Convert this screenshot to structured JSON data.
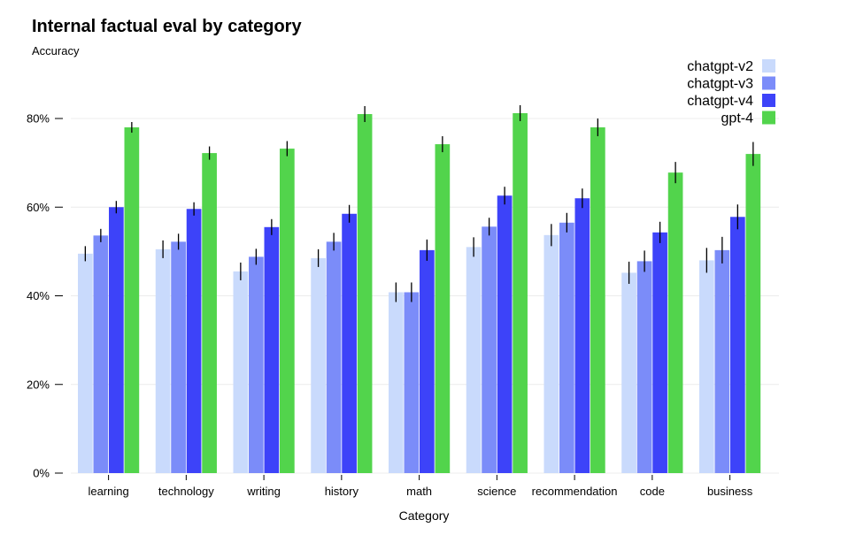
{
  "chart_data": {
    "type": "bar",
    "title": "Internal factual eval by category",
    "ylabel": "Accuracy",
    "xlabel": "Category",
    "ylim": [
      0,
      0.8
    ],
    "yticks": [
      0,
      0.2,
      0.4,
      0.6,
      0.8
    ],
    "ytick_labels": [
      "0%",
      "20%",
      "40%",
      "60%",
      "80%"
    ],
    "grid": true,
    "legend_position": "top-right",
    "categories": [
      "learning",
      "technology",
      "writing",
      "history",
      "math",
      "science",
      "recommendation",
      "code",
      "business"
    ],
    "series": [
      {
        "name": "chatgpt-v2",
        "color": "#c9dafc",
        "values": [
          0.495,
          0.505,
          0.455,
          0.485,
          0.408,
          0.51,
          0.537,
          0.452,
          0.48
        ],
        "errors": [
          0.017,
          0.02,
          0.02,
          0.02,
          0.022,
          0.022,
          0.025,
          0.025,
          0.028
        ]
      },
      {
        "name": "chatgpt-v3",
        "color": "#7b8cf9",
        "values": [
          0.536,
          0.522,
          0.488,
          0.522,
          0.408,
          0.556,
          0.565,
          0.478,
          0.503
        ],
        "errors": [
          0.015,
          0.018,
          0.018,
          0.02,
          0.022,
          0.02,
          0.022,
          0.024,
          0.03
        ]
      },
      {
        "name": "chatgpt-v4",
        "color": "#3d43f9",
        "values": [
          0.6,
          0.596,
          0.555,
          0.585,
          0.503,
          0.626,
          0.62,
          0.543,
          0.578
        ],
        "errors": [
          0.014,
          0.015,
          0.018,
          0.02,
          0.024,
          0.02,
          0.022,
          0.024,
          0.028
        ]
      },
      {
        "name": "gpt-4",
        "color": "#52d44c",
        "values": [
          0.78,
          0.722,
          0.732,
          0.81,
          0.742,
          0.812,
          0.78,
          0.678,
          0.72
        ],
        "errors": [
          0.012,
          0.015,
          0.017,
          0.018,
          0.018,
          0.018,
          0.02,
          0.024,
          0.027
        ]
      }
    ]
  }
}
